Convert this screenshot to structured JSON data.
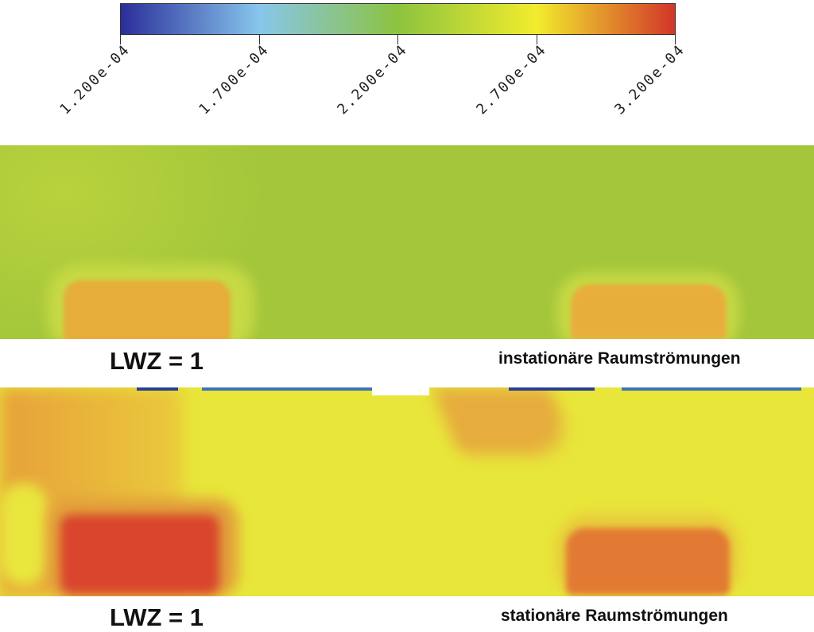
{
  "colorbar": {
    "min": 0.00012,
    "max": 0.00032,
    "colors": [
      "#2b2e9a",
      "#87c6ec",
      "#8cc33f",
      "#f2ec2d",
      "#d3352a"
    ],
    "ticks": [
      "1.200e-04",
      "1.700e-04",
      "2.200e-04",
      "2.700e-04",
      "3.200e-04"
    ]
  },
  "panels": [
    {
      "label": "LWZ = 1",
      "caption": "instationäre Raumströmungen"
    },
    {
      "label": "LWZ = 1",
      "caption": "stationäre Raumströmungen"
    }
  ]
}
